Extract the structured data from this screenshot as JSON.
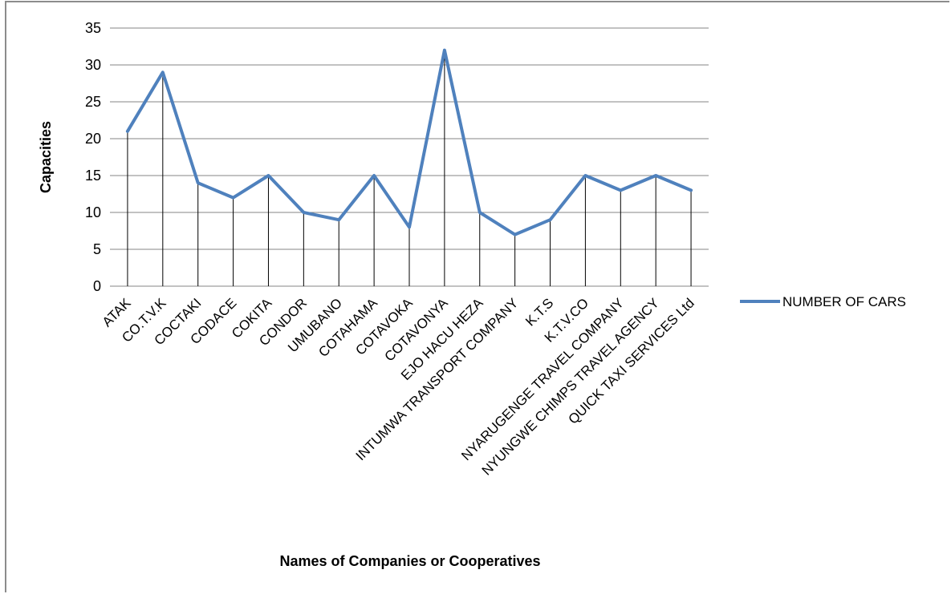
{
  "chart_data": {
    "type": "line",
    "title": "",
    "xlabel": "Names of Companies or Cooperatives",
    "ylabel": "Capacities",
    "ylim": [
      0,
      35
    ],
    "yticks": [
      0,
      5,
      10,
      15,
      20,
      25,
      30,
      35
    ],
    "grid": true,
    "legend_position": "right",
    "series_color": "#4f81bd",
    "categories": [
      "ATAK",
      "CO.T.V.K",
      "COCTAKI",
      "CODACE",
      "COKITA",
      "CONDOR",
      "UMUBANO",
      "COTAHAMA",
      "COTAVOKA",
      "COTAVONYA",
      "EJO HACU HEZA",
      "INTUMWA TRANSPORT COMPANY",
      "K.T.S",
      "K.T.V.CO",
      "NYARUGENGE TRAVEL COMPANY",
      "NYUNGWE CHIMPS TRAVEL AGENCY",
      "QUICK TAXI SERVICES Ltd"
    ],
    "series": [
      {
        "name": "NUMBER OF CARS",
        "values": [
          21,
          29,
          14,
          12,
          15,
          10,
          9,
          15,
          8,
          32,
          10,
          7,
          9,
          15,
          13,
          15,
          13
        ]
      }
    ]
  }
}
